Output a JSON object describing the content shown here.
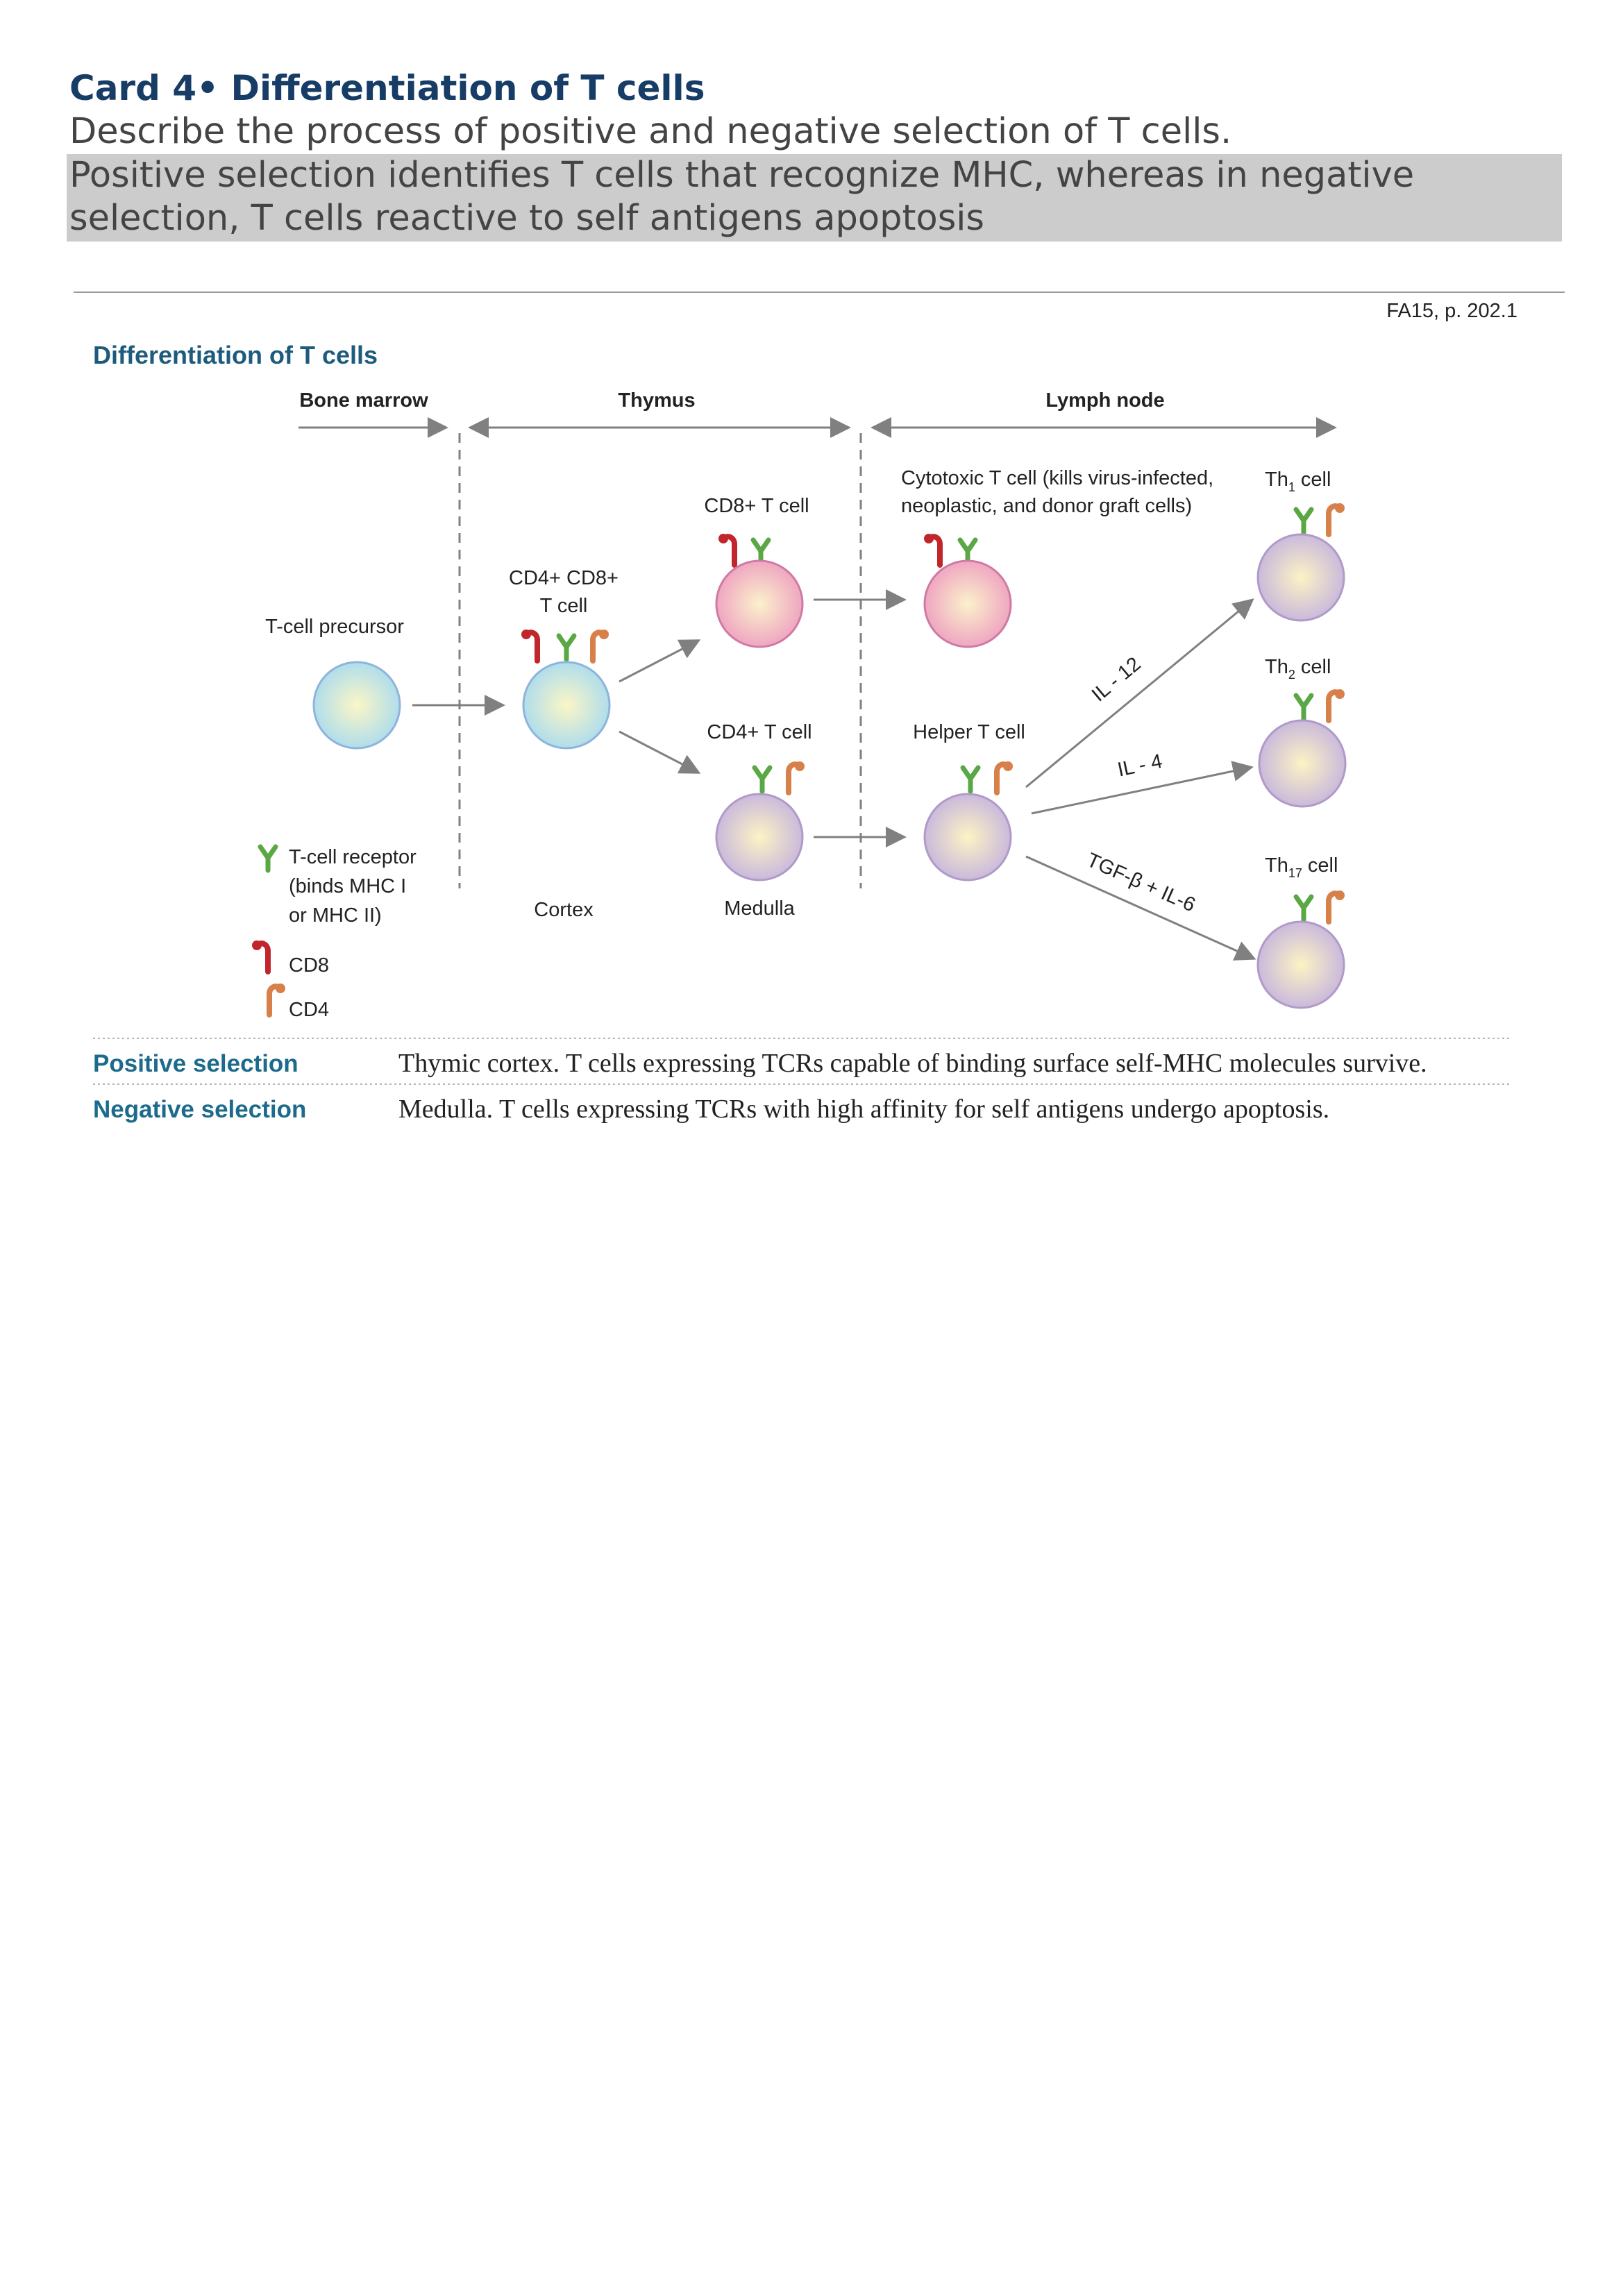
{
  "card": {
    "title": "Card 4• Differentiation of T cells",
    "question": "Describe the process of positive and negative selection of T cells.",
    "answer_line1": "Positive selection identifies T cells that recognize MHC, whereas in negative",
    "answer_line2": "selection, T cells reactive to self antigens apoptosis",
    "reference": "FA15, p. 202.1"
  },
  "diagram": {
    "title": "Differentiation of T cells",
    "regions": {
      "bone_marrow": "Bone marrow",
      "thymus": "Thymus",
      "lymph_node": "Lymph node"
    },
    "cells": {
      "precursor": "T-cell precursor",
      "double_positive_line1": "CD4+ CD8+",
      "double_positive_line2": "T cell",
      "cd8_t": "CD8+ T cell",
      "cd4_t": "CD4+ T cell",
      "cytotoxic_line1": "Cytotoxic T cell (kills virus-infected,",
      "cytotoxic_line2": "neoplastic, and donor graft cells)",
      "helper": "Helper T cell",
      "th1_prefix": "Th",
      "th1_sub": "1",
      "th1_suffix": " cell",
      "th2_prefix": "Th",
      "th2_sub": "2",
      "th2_suffix": " cell",
      "th17_prefix": "Th",
      "th17_sub": "17",
      "th17_suffix": " cell"
    },
    "cytokines": {
      "il12": "IL - 12",
      "il4": "IL - 4",
      "tgf": "TGF-β + IL-6"
    },
    "zones": {
      "cortex": "Cortex",
      "medulla": "Medulla"
    },
    "legend": {
      "tcr_line1": "T-cell receptor",
      "tcr_line2": "(binds MHC I",
      "tcr_line3": "or MHC II)",
      "cd8": "CD8",
      "cd4": "CD4"
    },
    "colors": {
      "tcr": "#5aa845",
      "cd8": "#c0262c",
      "cd4": "#d8804a",
      "arrow": "#808080",
      "title": "#1d5b7c"
    }
  },
  "selection": {
    "positive_label": "Positive selection",
    "positive_text": "Thymic cortex. T cells expressing TCRs capable of binding surface self-MHC molecules survive.",
    "negative_label": "Negative selection",
    "negative_text": "Medulla. T cells expressing TCRs with high affinity for self antigens undergo apoptosis."
  }
}
